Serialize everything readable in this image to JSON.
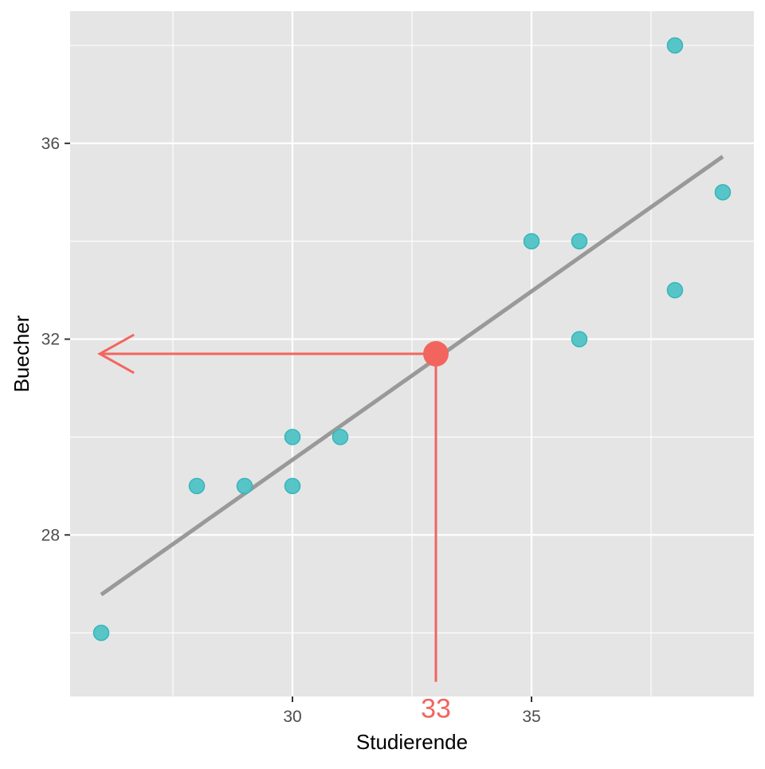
{
  "chart_data": {
    "type": "scatter",
    "title": "",
    "xlabel": "Studierende",
    "ylabel": "Buecher",
    "xlim": [
      25.35,
      39.65
    ],
    "ylim": [
      24.7,
      38.7
    ],
    "x_major_ticks": [
      30,
      35
    ],
    "x_minor_ticks": [
      27.5,
      32.5,
      37.5
    ],
    "y_major_ticks": [
      28,
      32,
      36
    ],
    "y_minor_ticks": [
      26,
      30,
      34,
      38
    ],
    "x_tick_labels": [
      "30",
      "35"
    ],
    "y_tick_labels": [
      "28",
      "32",
      "36"
    ],
    "grid": true,
    "points": [
      {
        "x": 26,
        "y": 26
      },
      {
        "x": 28,
        "y": 29
      },
      {
        "x": 29,
        "y": 29
      },
      {
        "x": 30,
        "y": 29
      },
      {
        "x": 30,
        "y": 30
      },
      {
        "x": 31,
        "y": 30
      },
      {
        "x": 35,
        "y": 34
      },
      {
        "x": 36,
        "y": 34
      },
      {
        "x": 36,
        "y": 32
      },
      {
        "x": 38,
        "y": 38
      },
      {
        "x": 38,
        "y": 33
      },
      {
        "x": 39,
        "y": 35
      }
    ],
    "regression_line": {
      "x": [
        26,
        39
      ],
      "y": [
        26.78,
        35.73
      ]
    },
    "prediction": {
      "x": 33,
      "y": 31.7,
      "label": "33",
      "arrow_tip_x": 25.97,
      "vertical_start_y": 25.0
    },
    "colors": {
      "panel_background": "#e5e5e5",
      "grid_line": "#ffffff",
      "point_fill": "#4fc3c6",
      "point_stroke": "#35b5b9",
      "regression_line": "#999999",
      "highlight": "#f2655e",
      "axis_text": "#4d4d4d",
      "axis_title": "#000000",
      "tick_mark": "#333333"
    }
  }
}
